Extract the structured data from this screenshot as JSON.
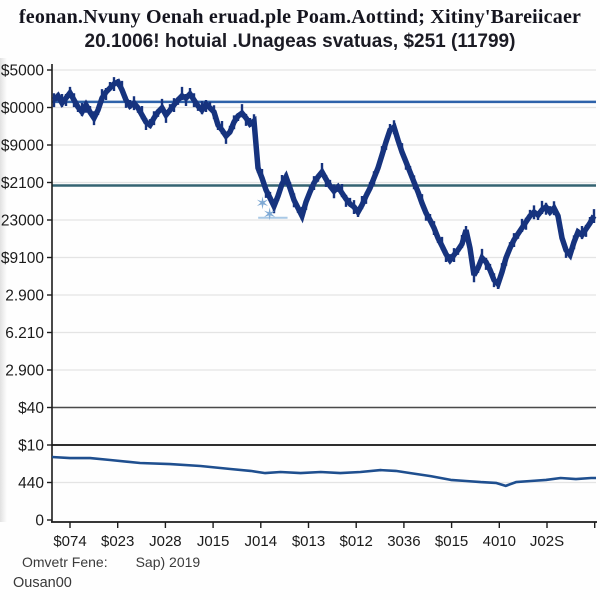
{
  "header": {
    "title_line1": "feonan.Nvuny Oenah eruad.ple Poam.Aottind; Xitiny'Bareiicaer",
    "title_line2": "20.1006! hotuial .Unageas svatuas,   $251 (11799)"
  },
  "footer": {
    "left": "Omvetr Fene:",
    "right": "Sap) 2019",
    "line2": "Ousan00"
  },
  "colors": {
    "candle": "#16337e",
    "upper_line": "#2e62aa",
    "teal_line": "#356472",
    "dark_rule_upper": "#4a4a4a",
    "dark_rule_lower": "#2e2e2e",
    "volume_line": "#1f4f8f",
    "gridline": "#e4e4e4",
    "axis": "#1c1c1c",
    "star": "#7fa9d4"
  },
  "chart_data": {
    "type": "candlestick",
    "title": "feonan.Nvuny Oenah eruad.ple Poam.Aottind; Xitiny'Bareiicaer",
    "subtitle": "20.1006! hotuial .Unageas svatuas,   $251 (11799)",
    "grid": true,
    "legend": "none",
    "y_axis": {
      "range": [
        0,
        120
      ],
      "tick_values": [
        120,
        110,
        100,
        90,
        80,
        70,
        60,
        50,
        40,
        30,
        20,
        10,
        0
      ],
      "tick_labels": [
        "$5000",
        "$0000",
        "$9000",
        "$2100",
        "23000",
        "$9100",
        "2.900",
        "6.210",
        "2.900",
        "$40",
        "$10",
        "440",
        "0"
      ]
    },
    "x_axis": {
      "tick_labels": [
        "$074",
        "$023",
        "J028",
        "J015",
        "J014",
        "$013",
        "$012",
        "3036",
        "$015",
        "4010",
        "J02S"
      ]
    },
    "hlines": [
      {
        "name": "upper-blue-level-line",
        "value": 111.5,
        "color": "#2e62aa",
        "width": 2.6
      },
      {
        "name": "teal-level-line",
        "value": 89.2,
        "color": "#356472",
        "width": 2.4
      },
      {
        "name": "dark-rule-40",
        "value": 30,
        "color": "#4a4a4a",
        "width": 1.4
      },
      {
        "name": "dark-rule-10",
        "value": 20,
        "color": "#2e2e2e",
        "width": 1.9
      }
    ],
    "series": [
      {
        "name": "price",
        "type": "candlestick",
        "color": "#16337e",
        "mid_values": [
          112.0,
          113.1,
          111.2,
          112.5,
          113.9,
          112.0,
          110.1,
          108.8,
          110.7,
          108.8,
          107.2,
          109.3,
          112.5,
          114.1,
          115.2,
          116.3,
          116.8,
          114.7,
          112.0,
          110.4,
          111.2,
          109.9,
          108.0,
          106.1,
          105.3,
          107.2,
          108.8,
          109.9,
          108.0,
          109.3,
          110.7,
          112.0,
          113.1,
          112.5,
          113.6,
          112.0,
          110.4,
          109.3,
          110.9,
          109.9,
          108.8,
          105.3,
          104.0,
          102.4,
          103.5,
          106.1,
          107.7,
          108.5,
          107.2,
          105.6,
          106.4,
          93.9,
          91.2,
          88.0,
          85.9,
          83.7,
          86.4,
          89.6,
          91.5,
          88.5,
          85.3,
          83.2,
          81.1,
          84.8,
          87.5,
          89.9,
          91.5,
          92.8,
          90.9,
          89.1,
          87.7,
          88.8,
          87.2,
          85.6,
          84.3,
          83.5,
          82.1,
          84.0,
          86.4,
          88.5,
          91.2,
          93.9,
          97.3,
          100.8,
          104.0,
          104.8,
          101.3,
          98.1,
          95.5,
          92.8,
          90.1,
          87.5,
          84.5,
          81.9,
          80.0,
          77.9,
          75.2,
          73.1,
          70.9,
          69.3,
          70.7,
          72.0,
          73.6,
          77.3,
          72.5,
          65.3,
          67.2,
          69.9,
          68.8,
          66.7,
          64.0,
          62.9,
          66.1,
          69.9,
          72.5,
          74.7,
          76.3,
          77.9,
          79.5,
          81.1,
          82.1,
          81.3,
          82.7,
          83.5,
          82.1,
          83.2,
          81.1,
          75.2,
          72.0,
          70.7,
          74.1,
          76.8,
          76.0,
          77.6,
          79.2,
          81.1
        ]
      },
      {
        "name": "lower-indicator",
        "type": "line",
        "color": "#1f4f8f",
        "points": [
          [
            0.0,
            16.8
          ],
          [
            0.033,
            16.5
          ],
          [
            0.07,
            16.5
          ],
          [
            0.107,
            16.0
          ],
          [
            0.162,
            15.2
          ],
          [
            0.217,
            14.9
          ],
          [
            0.273,
            14.4
          ],
          [
            0.328,
            13.6
          ],
          [
            0.365,
            13.1
          ],
          [
            0.392,
            12.5
          ],
          [
            0.42,
            12.8
          ],
          [
            0.457,
            12.5
          ],
          [
            0.494,
            12.8
          ],
          [
            0.53,
            12.5
          ],
          [
            0.567,
            12.8
          ],
          [
            0.604,
            13.3
          ],
          [
            0.632,
            13.1
          ],
          [
            0.659,
            12.5
          ],
          [
            0.696,
            11.7
          ],
          [
            0.733,
            10.7
          ],
          [
            0.761,
            10.4
          ],
          [
            0.788,
            10.1
          ],
          [
            0.816,
            9.9
          ],
          [
            0.834,
            9.1
          ],
          [
            0.853,
            10.1
          ],
          [
            0.88,
            10.4
          ],
          [
            0.908,
            10.7
          ],
          [
            0.935,
            11.2
          ],
          [
            0.963,
            10.9
          ],
          [
            0.991,
            11.2
          ],
          [
            1.0,
            11.2
          ]
        ]
      }
    ],
    "markers": {
      "stars": [
        {
          "glyph": "✶",
          "x_frac": 0.387,
          "value": 84.5
        },
        {
          "glyph": "✶",
          "x_frac": 0.4,
          "value": 81.6
        }
      ],
      "dash": {
        "x1_frac": 0.379,
        "x2_frac": 0.433,
        "value": 80.6,
        "color": "#a9c9e6"
      }
    }
  }
}
